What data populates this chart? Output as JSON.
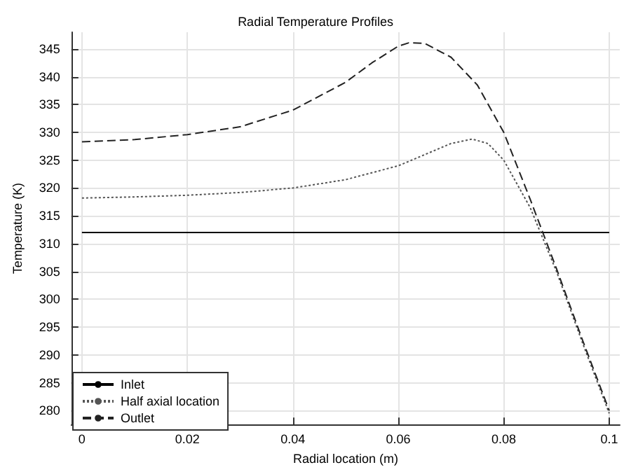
{
  "chart_data": {
    "type": "line",
    "title": "Radial Temperature Profiles",
    "xlabel": "Radial location (m)",
    "ylabel": "Temperature (K)",
    "xlim": [
      -0.002,
      0.102
    ],
    "xticks": [
      0,
      0.02,
      0.04,
      0.06,
      0.08,
      0.1
    ],
    "ylim": [
      277.5,
      348
    ],
    "yticks": [
      280,
      285,
      290,
      295,
      300,
      305,
      310,
      315,
      320,
      325,
      330,
      335,
      340,
      345
    ],
    "grid": true,
    "legend": "bottom left",
    "marker": "none",
    "series": [
      {
        "name": "Inlet",
        "color": "#000000",
        "line_style": "solid",
        "x": [
          0,
          0.1
        ],
        "values": [
          312,
          312
        ]
      },
      {
        "name": "Half axial location",
        "color": "#555555",
        "line_style": "dotted",
        "x": [
          0,
          0.01,
          0.02,
          0.03,
          0.04,
          0.05,
          0.06,
          0.065,
          0.07,
          0.074,
          0.077,
          0.08,
          0.085,
          0.09,
          0.095,
          0.1
        ],
        "values": [
          318.2,
          318.4,
          318.7,
          319.2,
          320,
          321.5,
          324,
          326,
          328,
          328.8,
          328,
          325,
          316.5,
          305,
          292,
          279.5
        ]
      },
      {
        "name": "Outlet",
        "color": "#222222",
        "line_style": "dashed",
        "x": [
          0,
          0.01,
          0.02,
          0.03,
          0.04,
          0.05,
          0.055,
          0.06,
          0.062,
          0.065,
          0.07,
          0.075,
          0.08,
          0.085,
          0.09,
          0.095,
          0.1
        ],
        "values": [
          328.3,
          328.7,
          329.6,
          331,
          334,
          339,
          342.5,
          345.5,
          346.1,
          346,
          343.5,
          338.5,
          330,
          318,
          305.5,
          292.5,
          280
        ]
      }
    ]
  }
}
